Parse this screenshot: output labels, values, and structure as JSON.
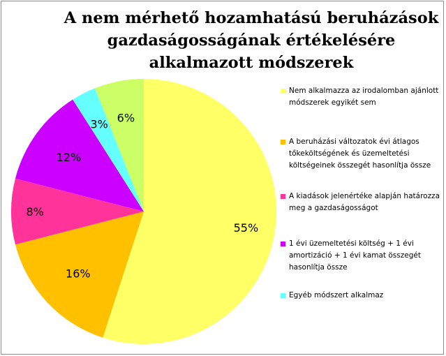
{
  "chart_data": {
    "type": "pie",
    "title_lines": [
      "A nem mérhető hozamhatású beruházások",
      "gazdaságosságának értékelésére",
      "alkalmazott módszerek"
    ],
    "slices": [
      {
        "label": "Nem alkalmazza az irodalomban ajánlott módszerek egyikét sem",
        "value": 55,
        "display": "55%",
        "color": "#ffff66"
      },
      {
        "label": "A beruházási változatok évi átlagos tőkeköltségének és üzemeltetési költségeinek összegét hasonlítja össze",
        "value": 16,
        "display": "16%",
        "color": "#ffc000"
      },
      {
        "label": "A kiadások jelenértéke alapján határozza meg a gazdaságosságot",
        "value": 8,
        "display": "8%",
        "color": "#ff3399"
      },
      {
        "label": "1 évi üzemeltetési költség + 1 évi amortizáció + 1 évi kamat összegét hasonlítja össze",
        "value": 12,
        "display": "12%",
        "color": "#cc00ff"
      },
      {
        "label": "Egyéb módszert alkalmaz",
        "value": 3,
        "display": "3%",
        "color": "#66ffff"
      },
      {
        "label": "",
        "value": 6,
        "display": "6%",
        "color": "#ccff66"
      }
    ],
    "legend_position": "right"
  }
}
